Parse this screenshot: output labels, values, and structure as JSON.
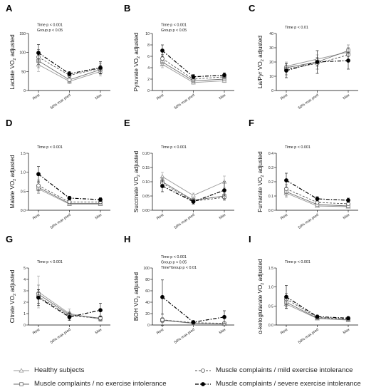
{
  "legend": [
    {
      "label": "Healthy subjects",
      "marker": "triangle-open",
      "dash": "solid",
      "color": "#9a9a9a"
    },
    {
      "label": "Muscle complaints / no exercise intolerance",
      "marker": "square-open",
      "dash": "solid",
      "color": "#6e6e6e"
    },
    {
      "label": "Muscle complaints / mild exercise intolerance",
      "marker": "circle-open",
      "dash": "dashed",
      "color": "#555555"
    },
    {
      "label": "Muscle complaints / severe exercise intolerance",
      "marker": "circle-filled",
      "dash": "dashdot",
      "color": "#000000"
    }
  ],
  "chart_data": [
    {
      "panel": "A",
      "type": "line",
      "ylabel": "Lactate VO2 adjusted",
      "ylabel_main": "Lactate VO",
      "ylabel_sub": "2",
      "ylabel_tail": " adjusted",
      "annotations": [
        "Time p < 0.001",
        "Group p < 0.05"
      ],
      "categories": [
        "Rest",
        "50% max pred",
        "Max"
      ],
      "ylim": [
        0,
        150
      ],
      "yticks": [
        "0",
        "50",
        "100",
        "150"
      ],
      "series": [
        {
          "name": "Healthy subjects",
          "values": [
            68,
            24,
            50
          ],
          "err": [
            18,
            6,
            12
          ]
        },
        {
          "name": "Muscle complaints / no exercise intolerance",
          "values": [
            78,
            28,
            55
          ],
          "err": [
            18,
            6,
            12
          ]
        },
        {
          "name": "Muscle complaints / mild exercise intolerance",
          "values": [
            88,
            40,
            58
          ],
          "err": [
            20,
            6,
            14
          ]
        },
        {
          "name": "Muscle complaints / severe exercise intolerance",
          "values": [
            99,
            44,
            60
          ],
          "err": [
            22,
            6,
            16
          ]
        }
      ]
    },
    {
      "panel": "B",
      "type": "line",
      "ylabel": "Pyruvate VO2 adjusted",
      "ylabel_main": "Pyruvate VO",
      "ylabel_sub": "2",
      "ylabel_tail": " adjusted",
      "annotations": [
        "Time p < 0.001",
        "Group p < 0.05"
      ],
      "categories": [
        "Rest",
        "50% max pred",
        "Max"
      ],
      "ylim": [
        0,
        10
      ],
      "yticks": [
        "0",
        "2",
        "4",
        "6",
        "8",
        "10"
      ],
      "series": [
        {
          "name": "Healthy subjects",
          "values": [
            4.6,
            1.4,
            1.7
          ],
          "err": [
            0.6,
            0.3,
            0.3
          ]
        },
        {
          "name": "Muscle complaints / no exercise intolerance",
          "values": [
            5.0,
            1.7,
            2.0
          ],
          "err": [
            0.6,
            0.3,
            0.3
          ]
        },
        {
          "name": "Muscle complaints / mild exercise intolerance",
          "values": [
            5.6,
            2.0,
            2.4
          ],
          "err": [
            0.7,
            0.4,
            0.4
          ]
        },
        {
          "name": "Muscle complaints / severe exercise intolerance",
          "values": [
            7.0,
            2.4,
            2.7
          ],
          "err": [
            1.0,
            0.4,
            0.4
          ]
        }
      ]
    },
    {
      "panel": "C",
      "type": "line",
      "ylabel": "La/Pyr VO2 adjusted",
      "ylabel_main": "La/Pyr VO",
      "ylabel_sub": "2",
      "ylabel_tail": " adjusted",
      "annotations": [
        "Time p < 0.01"
      ],
      "categories": [
        "Rest",
        "50% max pred",
        "Max"
      ],
      "ylim": [
        0,
        40
      ],
      "yticks": [
        "0",
        "10",
        "20",
        "30",
        "40"
      ],
      "series": [
        {
          "name": "Healthy subjects",
          "values": [
            17,
            22,
            27
          ],
          "err": [
            3,
            3,
            3
          ]
        },
        {
          "name": "Muscle complaints / no exercise intolerance",
          "values": [
            16,
            20,
            28
          ],
          "err": [
            3,
            3,
            4
          ]
        },
        {
          "name": "Muscle complaints / mild exercise intolerance",
          "values": [
            15,
            19,
            25
          ],
          "err": [
            4,
            4,
            5
          ]
        },
        {
          "name": "Muscle complaints / severe exercise intolerance",
          "values": [
            14,
            20,
            21
          ],
          "err": [
            5,
            8,
            6
          ]
        }
      ]
    },
    {
      "panel": "D",
      "type": "line",
      "ylabel": "Malate VO2 adjusted",
      "ylabel_main": "Malate VO",
      "ylabel_sub": "2",
      "ylabel_tail": " adjusted",
      "annotations": [
        "Time p < 0.001"
      ],
      "categories": [
        "Rest",
        "50% max pred",
        "Max"
      ],
      "ylim": [
        0,
        1.5
      ],
      "yticks": [
        "0.0",
        "0.5",
        "1.0",
        "1.5"
      ],
      "series": [
        {
          "name": "Healthy subjects",
          "values": [
            0.56,
            0.16,
            0.16
          ],
          "err": [
            0.12,
            0.03,
            0.03
          ]
        },
        {
          "name": "Muscle complaints / no exercise intolerance",
          "values": [
            0.6,
            0.18,
            0.18
          ],
          "err": [
            0.12,
            0.03,
            0.03
          ]
        },
        {
          "name": "Muscle complaints / mild exercise intolerance",
          "values": [
            0.65,
            0.22,
            0.22
          ],
          "err": [
            0.14,
            0.04,
            0.04
          ]
        },
        {
          "name": "Muscle complaints / severe exercise intolerance",
          "values": [
            0.95,
            0.32,
            0.28
          ],
          "err": [
            0.2,
            0.05,
            0.05
          ]
        }
      ]
    },
    {
      "panel": "E",
      "type": "line",
      "ylabel": "Succinate VO2 adjusted",
      "ylabel_main": "Succinate VO",
      "ylabel_sub": "2",
      "ylabel_tail": " adjusted",
      "annotations": [
        "Time p < 0.001"
      ],
      "categories": [
        "Rest",
        "50% max pred",
        "Max"
      ],
      "ylim": [
        0,
        0.2
      ],
      "yticks": [
        "0.00",
        "0.05",
        "0.10",
        "0.15",
        "0.20"
      ],
      "series": [
        {
          "name": "Healthy subjects",
          "values": [
            0.118,
            0.052,
            0.1
          ],
          "err": [
            0.015,
            0.008,
            0.02
          ]
        },
        {
          "name": "Muscle complaints / no exercise intolerance",
          "values": [
            0.1,
            0.035,
            0.05
          ],
          "err": [
            0.015,
            0.006,
            0.01
          ]
        },
        {
          "name": "Muscle complaints / mild exercise intolerance",
          "values": [
            0.095,
            0.032,
            0.045
          ],
          "err": [
            0.015,
            0.006,
            0.01
          ]
        },
        {
          "name": "Muscle complaints / severe exercise intolerance",
          "values": [
            0.085,
            0.03,
            0.07
          ],
          "err": [
            0.02,
            0.008,
            0.03
          ]
        }
      ]
    },
    {
      "panel": "F",
      "type": "line",
      "ylabel": "Fumarate VO2 adjusted",
      "ylabel_main": "Fumarate VO",
      "ylabel_sub": "2",
      "ylabel_tail": " adjusted",
      "annotations": [
        "Time p < 0.001"
      ],
      "categories": [
        "Rest",
        "50% max pred",
        "Max"
      ],
      "ylim": [
        0,
        0.4
      ],
      "yticks": [
        "0.0",
        "0.1",
        "0.2",
        "0.3",
        "0.4"
      ],
      "series": [
        {
          "name": "Healthy subjects",
          "values": [
            0.12,
            0.03,
            0.025
          ],
          "err": [
            0.03,
            0.008,
            0.008
          ]
        },
        {
          "name": "Muscle complaints / no exercise intolerance",
          "values": [
            0.13,
            0.04,
            0.03
          ],
          "err": [
            0.03,
            0.008,
            0.008
          ]
        },
        {
          "name": "Muscle complaints / mild exercise intolerance",
          "values": [
            0.15,
            0.055,
            0.045
          ],
          "err": [
            0.03,
            0.01,
            0.01
          ]
        },
        {
          "name": "Muscle complaints / severe exercise intolerance",
          "values": [
            0.21,
            0.08,
            0.07
          ],
          "err": [
            0.05,
            0.015,
            0.015
          ]
        }
      ]
    },
    {
      "panel": "G",
      "type": "line",
      "ylabel": "Citrate VO2 adjusted",
      "ylabel_main": "Citrate VO",
      "ylabel_sub": "2",
      "ylabel_tail": " adjusted",
      "annotations": [
        "Time p < 0.001"
      ],
      "categories": [
        "Rest",
        "50% max pred",
        "Max"
      ],
      "ylim": [
        0,
        5
      ],
      "yticks": [
        "0",
        "1",
        "2",
        "3",
        "4",
        "5"
      ],
      "series": [
        {
          "name": "Healthy subjects",
          "values": [
            2.9,
            1.0,
            0.5
          ],
          "err": [
            1.4,
            0.4,
            0.2
          ]
        },
        {
          "name": "Muscle complaints / no exercise intolerance",
          "values": [
            2.7,
            0.9,
            0.6
          ],
          "err": [
            0.8,
            0.3,
            0.2
          ]
        },
        {
          "name": "Muscle complaints / mild exercise intolerance",
          "values": [
            2.5,
            0.8,
            0.6
          ],
          "err": [
            0.6,
            0.3,
            0.2
          ]
        },
        {
          "name": "Muscle complaints / severe exercise intolerance",
          "values": [
            2.4,
            0.7,
            1.3
          ],
          "err": [
            0.7,
            0.3,
            0.6
          ]
        }
      ]
    },
    {
      "panel": "H",
      "type": "line",
      "ylabel": "BOH VO2 adjusted",
      "ylabel_main": "BOH VO",
      "ylabel_sub": "2",
      "ylabel_tail": " adjusted",
      "annotations": [
        "Time p < 0.001",
        "Group p < 0.05",
        "Time*Group p < 0.01"
      ],
      "categories": [
        "Rest",
        "50% max pred",
        "Max"
      ],
      "ylim": [
        0,
        100
      ],
      "yticks": [
        "0",
        "20",
        "40",
        "60",
        "80",
        "100"
      ],
      "series": [
        {
          "name": "Healthy subjects",
          "values": [
            8,
            3,
            2
          ],
          "err": [
            4,
            1.5,
            1.5
          ]
        },
        {
          "name": "Muscle complaints / no exercise intolerance",
          "values": [
            9,
            3,
            2
          ],
          "err": [
            4,
            1.5,
            1.5
          ]
        },
        {
          "name": "Muscle complaints / mild exercise intolerance",
          "values": [
            9,
            4,
            3
          ],
          "err": [
            10,
            2,
            2
          ]
        },
        {
          "name": "Muscle complaints / severe exercise intolerance",
          "values": [
            49,
            5,
            14
          ],
          "err": [
            30,
            2,
            11
          ]
        }
      ]
    },
    {
      "panel": "I",
      "type": "line",
      "ylabel": "α-ketoglutarate VO2 adjusted",
      "ylabel_main": "α-ketoglutarate VO",
      "ylabel_sub": "2",
      "ylabel_tail": " adjusted",
      "annotations": [
        "Time p < 0.001"
      ],
      "categories": [
        "Rest",
        "50% max pred",
        "Max"
      ],
      "ylim": [
        0,
        1.5
      ],
      "yticks": [
        "0.0",
        "0.5",
        "1.0",
        "1.5"
      ],
      "series": [
        {
          "name": "Healthy subjects",
          "values": [
            0.55,
            0.17,
            0.13
          ],
          "err": [
            0.12,
            0.03,
            0.03
          ]
        },
        {
          "name": "Muscle complaints / no exercise intolerance",
          "values": [
            0.6,
            0.18,
            0.14
          ],
          "err": [
            0.12,
            0.03,
            0.03
          ]
        },
        {
          "name": "Muscle complaints / mild exercise intolerance",
          "values": [
            0.68,
            0.2,
            0.16
          ],
          "err": [
            0.15,
            0.03,
            0.03
          ]
        },
        {
          "name": "Muscle complaints / severe exercise intolerance",
          "values": [
            0.74,
            0.22,
            0.18
          ],
          "err": [
            0.3,
            0.04,
            0.04
          ]
        }
      ]
    }
  ]
}
